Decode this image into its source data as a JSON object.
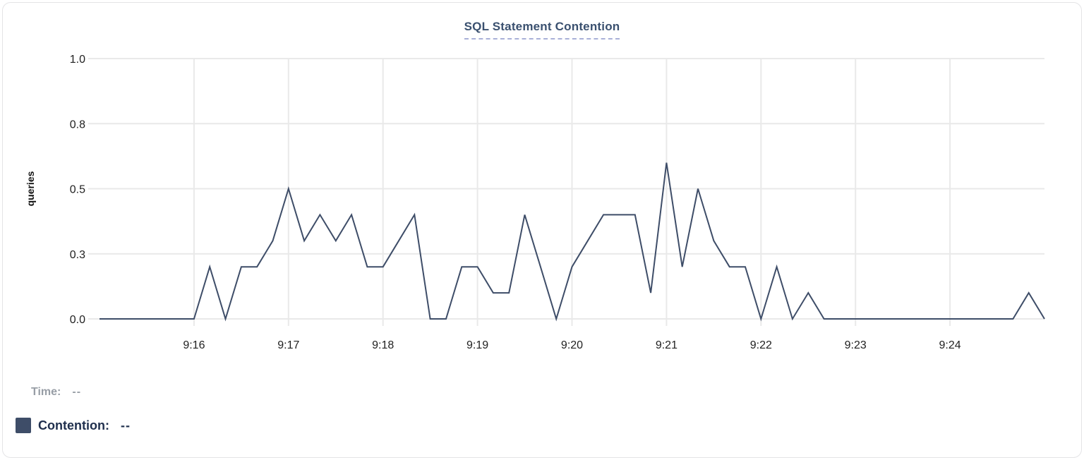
{
  "chart_data": {
    "type": "line",
    "title": "SQL Statement Contention",
    "xlabel": "",
    "ylabel": "queries",
    "series_name": "Contention",
    "ylim": [
      0,
      1
    ],
    "grid": true,
    "legend_position": "bottom-left",
    "line_color": "#3e4d68",
    "grid_color": "#e9e9e9",
    "tick_label_color": "#212121",
    "interval_seconds": 10,
    "y_ticks": [
      {
        "value": 0.0,
        "label": "0.0"
      },
      {
        "value": 0.25,
        "label": "0.3"
      },
      {
        "value": 0.5,
        "label": "0.5"
      },
      {
        "value": 0.75,
        "label": "0.8"
      },
      {
        "value": 1.0,
        "label": "1.0"
      }
    ],
    "x_ticks": [
      {
        "index": 6,
        "label": "9:16"
      },
      {
        "index": 12,
        "label": "9:17"
      },
      {
        "index": 18,
        "label": "9:18"
      },
      {
        "index": 24,
        "label": "9:19"
      },
      {
        "index": 30,
        "label": "9:20"
      },
      {
        "index": 36,
        "label": "9:21"
      },
      {
        "index": 42,
        "label": "9:22"
      },
      {
        "index": 48,
        "label": "9:23"
      },
      {
        "index": 54,
        "label": "9:24"
      }
    ],
    "times": [
      "9:15:00",
      "9:15:10",
      "9:15:20",
      "9:15:30",
      "9:15:40",
      "9:15:50",
      "9:16:00",
      "9:16:10",
      "9:16:20",
      "9:16:30",
      "9:16:40",
      "9:16:50",
      "9:17:00",
      "9:17:10",
      "9:17:20",
      "9:17:30",
      "9:17:40",
      "9:17:50",
      "9:18:00",
      "9:18:10",
      "9:18:20",
      "9:18:30",
      "9:18:40",
      "9:18:50",
      "9:19:00",
      "9:19:10",
      "9:19:20",
      "9:19:30",
      "9:19:40",
      "9:19:50",
      "9:20:00",
      "9:20:10",
      "9:20:20",
      "9:20:30",
      "9:20:40",
      "9:20:50",
      "9:21:00",
      "9:21:10",
      "9:21:20",
      "9:21:30",
      "9:21:40",
      "9:21:50",
      "9:22:00",
      "9:22:10",
      "9:22:20",
      "9:22:30",
      "9:22:40",
      "9:22:50",
      "9:23:00",
      "9:23:10",
      "9:23:20",
      "9:23:30",
      "9:23:40",
      "9:23:50",
      "9:24:00",
      "9:24:10",
      "9:24:20",
      "9:24:30",
      "9:24:40",
      "9:24:50",
      "9:25:00"
    ],
    "values": [
      0,
      0,
      0,
      0,
      0,
      0,
      0,
      0.2,
      0,
      0.2,
      0.2,
      0.3,
      0.5,
      0.3,
      0.4,
      0.3,
      0.4,
      0.2,
      0.2,
      0.3,
      0.4,
      0,
      0,
      0.2,
      0.2,
      0.1,
      0.1,
      0.4,
      0.2,
      0,
      0.2,
      0.3,
      0.4,
      0.4,
      0.4,
      0.1,
      0.6,
      0.2,
      0.5,
      0.3,
      0.2,
      0.2,
      0,
      0.2,
      0,
      0.1,
      0,
      0,
      0,
      0,
      0,
      0,
      0,
      0,
      0,
      0,
      0,
      0,
      0,
      0.1,
      0
    ]
  },
  "footer": {
    "time_label": "Time:",
    "time_value": "--",
    "series_label": "Contention:",
    "series_value": "--",
    "swatch_color": "#3e4d68"
  }
}
